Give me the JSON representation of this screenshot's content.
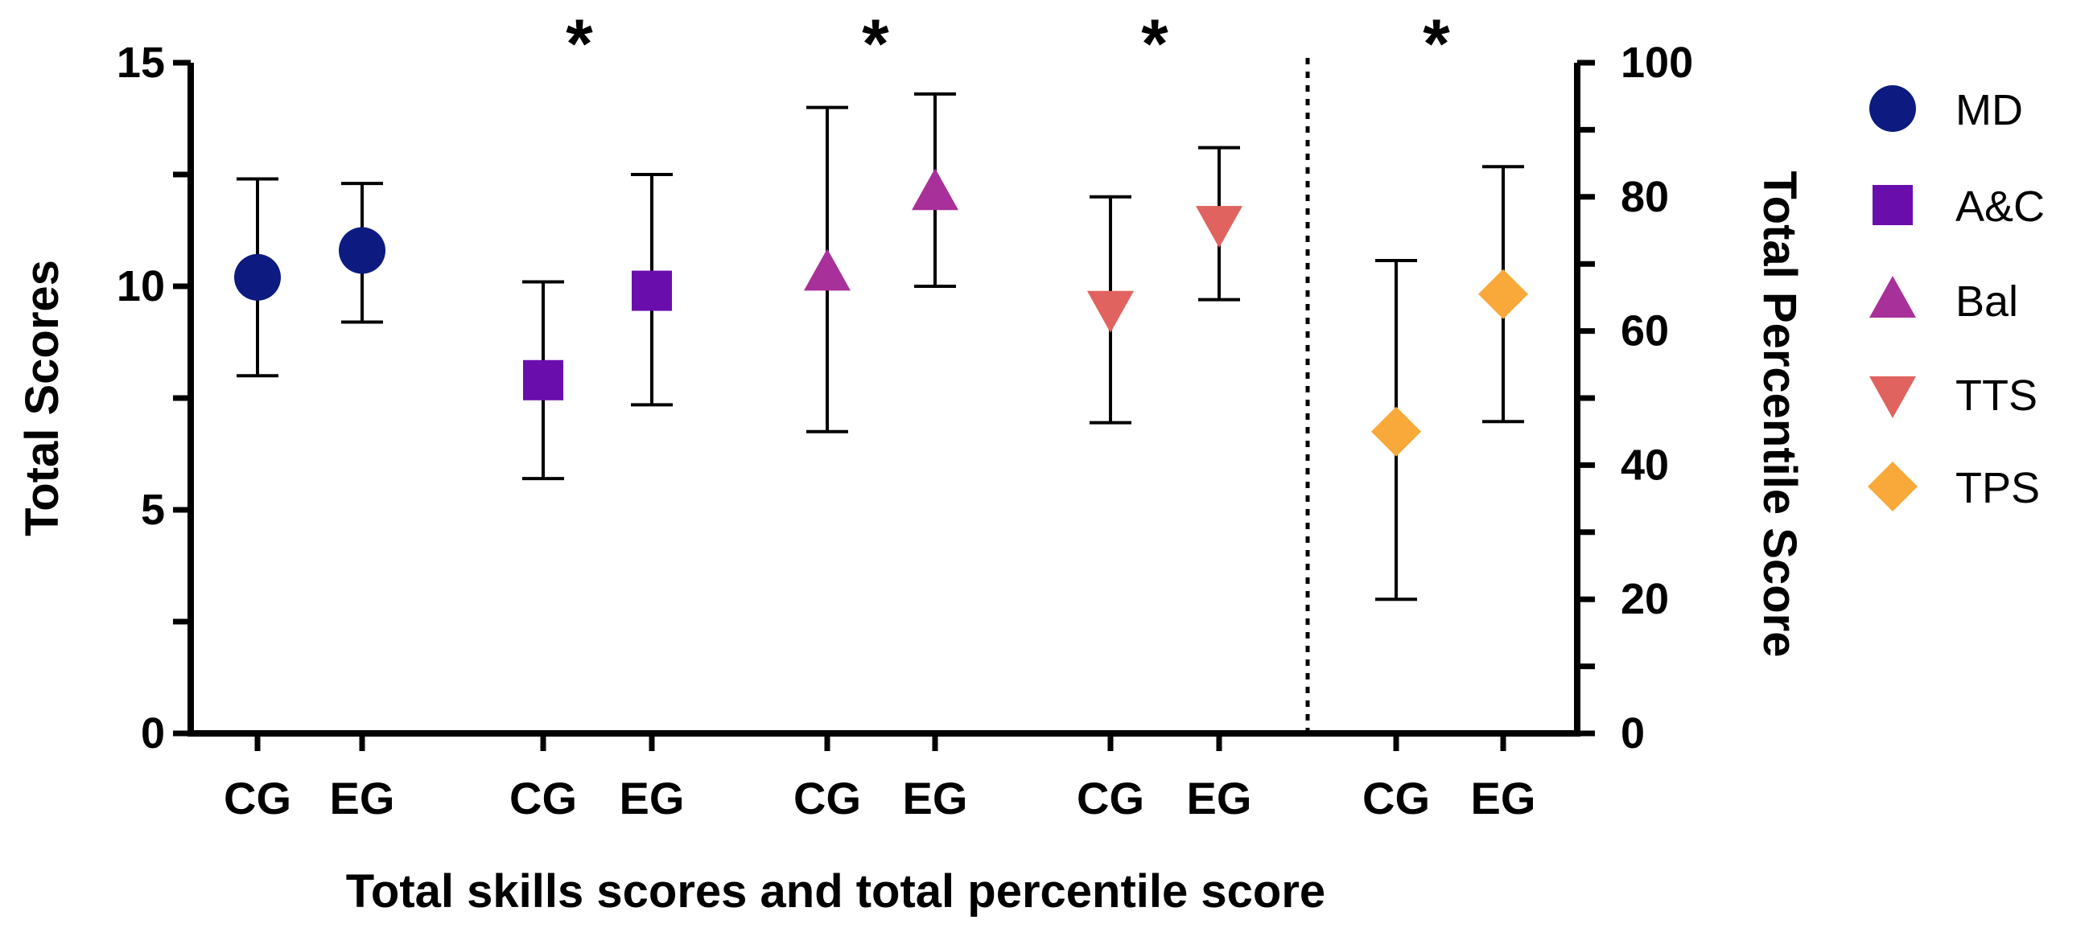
{
  "chart_data": {
    "type": "scatter",
    "title": "",
    "xlabel": "Total skills scores and total percentile score",
    "ylabel_left": "Total Scores",
    "ylabel_right": "Total Percentile Score",
    "ylim_left": [
      0,
      15
    ],
    "ylim_right": [
      0,
      100
    ],
    "left_ticks": [
      "0",
      "5",
      "10",
      "15"
    ],
    "right_ticks": [
      "0",
      "20",
      "40",
      "60",
      "80",
      "100"
    ],
    "legend_position": "right",
    "series": [
      {
        "name": "MD",
        "axis": "left",
        "marker": "circle",
        "color": "#0d1a80",
        "points": [
          {
            "group": "CG",
            "mean": 10.2,
            "low": 8.0,
            "high": 12.4
          },
          {
            "group": "EG",
            "mean": 10.8,
            "low": 9.2,
            "high": 12.3
          }
        ]
      },
      {
        "name": "A&C",
        "axis": "left",
        "marker": "square",
        "color": "#6a0dad",
        "points": [
          {
            "group": "CG",
            "mean": 7.9,
            "low": 5.7,
            "high": 10.1
          },
          {
            "group": "EG",
            "mean": 9.9,
            "low": 7.35,
            "high": 12.5
          }
        ],
        "significant": "*"
      },
      {
        "name": "Bal",
        "axis": "left",
        "marker": "triangle-up",
        "color": "#a8309a",
        "points": [
          {
            "group": "CG",
            "mean": 10.3,
            "low": 6.75,
            "high": 14.0
          },
          {
            "group": "EG",
            "mean": 12.1,
            "low": 10.0,
            "high": 14.3
          }
        ],
        "significant": "*"
      },
      {
        "name": "TTS",
        "axis": "left",
        "marker": "triangle-down",
        "color": "#e0635f",
        "points": [
          {
            "group": "CG",
            "mean": 9.5,
            "low": 6.95,
            "high": 12.0
          },
          {
            "group": "EG",
            "mean": 11.4,
            "low": 9.7,
            "high": 13.1
          }
        ],
        "significant": "*"
      },
      {
        "name": "TPS",
        "axis": "right",
        "marker": "diamond",
        "color": "#f9a93a",
        "points": [
          {
            "group": "CG",
            "mean": 45,
            "low": 20,
            "high": 70.5
          },
          {
            "group": "EG",
            "mean": 65.5,
            "low": 46.5,
            "high": 84.5
          }
        ],
        "significant": "*"
      }
    ]
  }
}
